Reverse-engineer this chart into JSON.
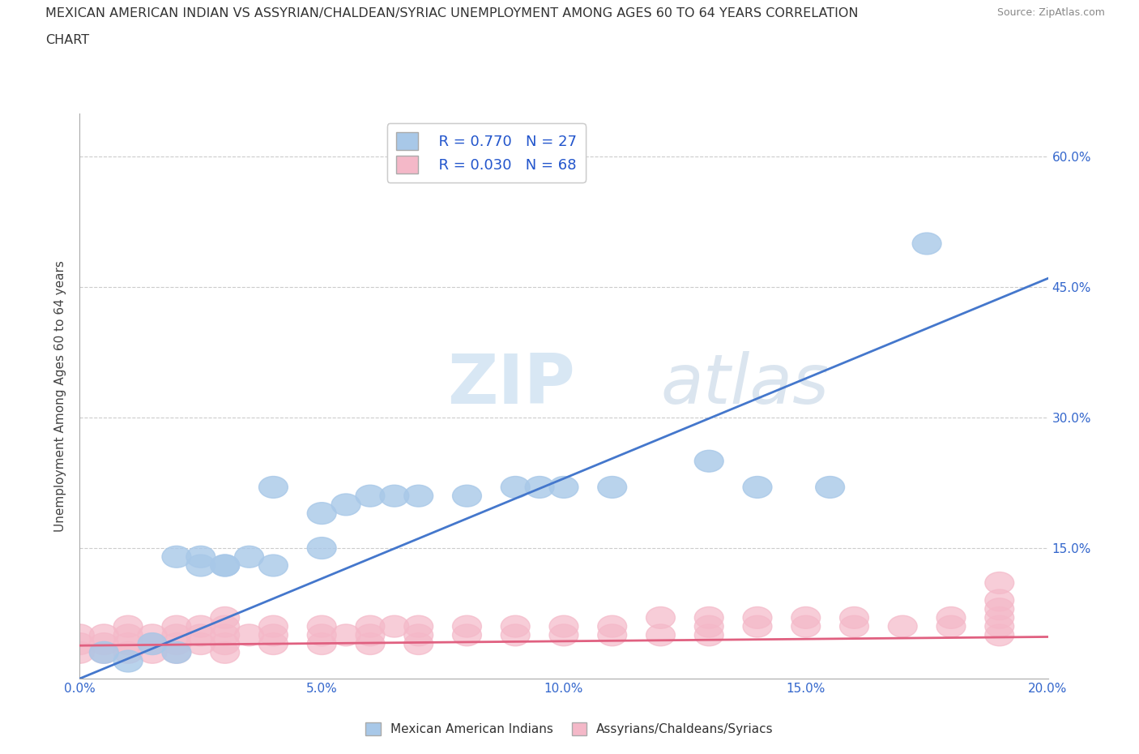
{
  "title_line1": "MEXICAN AMERICAN INDIAN VS ASSYRIAN/CHALDEAN/SYRIAC UNEMPLOYMENT AMONG AGES 60 TO 64 YEARS CORRELATION",
  "title_line2": "CHART",
  "source": "Source: ZipAtlas.com",
  "ylabel": "Unemployment Among Ages 60 to 64 years",
  "xlim": [
    0.0,
    0.2
  ],
  "ylim": [
    0.0,
    0.65
  ],
  "xticks": [
    0.0,
    0.05,
    0.1,
    0.15,
    0.2
  ],
  "yticks": [
    0.0,
    0.15,
    0.3,
    0.45,
    0.6
  ],
  "ytick_labels_right": [
    "",
    "15.0%",
    "30.0%",
    "45.0%",
    "60.0%"
  ],
  "xtick_labels": [
    "0.0%",
    "5.0%",
    "10.0%",
    "15.0%",
    "20.0%"
  ],
  "blue_R": 0.77,
  "blue_N": 27,
  "pink_R": 0.03,
  "pink_N": 68,
  "blue_color": "#a8c8e8",
  "pink_color": "#f4b8c8",
  "blue_line_color": "#4477cc",
  "pink_line_color": "#e06080",
  "legend_R_color": "#2255cc",
  "background_color": "#ffffff",
  "watermark_zip": "ZIP",
  "watermark_atlas": "atlas",
  "blue_scatter_x": [
    0.005,
    0.01,
    0.015,
    0.02,
    0.025,
    0.02,
    0.03,
    0.025,
    0.03,
    0.035,
    0.04,
    0.04,
    0.05,
    0.05,
    0.055,
    0.06,
    0.065,
    0.07,
    0.08,
    0.09,
    0.095,
    0.1,
    0.11,
    0.13,
    0.14,
    0.155,
    0.175
  ],
  "blue_scatter_y": [
    0.03,
    0.02,
    0.04,
    0.03,
    0.13,
    0.14,
    0.13,
    0.14,
    0.13,
    0.14,
    0.13,
    0.22,
    0.15,
    0.19,
    0.2,
    0.21,
    0.21,
    0.21,
    0.21,
    0.22,
    0.22,
    0.22,
    0.22,
    0.25,
    0.22,
    0.22,
    0.5
  ],
  "pink_scatter_x": [
    0.0,
    0.0,
    0.0,
    0.005,
    0.005,
    0.005,
    0.01,
    0.01,
    0.01,
    0.01,
    0.015,
    0.015,
    0.015,
    0.02,
    0.02,
    0.02,
    0.02,
    0.025,
    0.025,
    0.025,
    0.03,
    0.03,
    0.03,
    0.03,
    0.03,
    0.035,
    0.04,
    0.04,
    0.04,
    0.05,
    0.05,
    0.05,
    0.055,
    0.06,
    0.06,
    0.06,
    0.065,
    0.07,
    0.07,
    0.07,
    0.08,
    0.08,
    0.09,
    0.09,
    0.1,
    0.1,
    0.11,
    0.11,
    0.12,
    0.12,
    0.13,
    0.13,
    0.13,
    0.14,
    0.14,
    0.15,
    0.15,
    0.16,
    0.16,
    0.17,
    0.18,
    0.18,
    0.19,
    0.19,
    0.19,
    0.19,
    0.19,
    0.19
  ],
  "pink_scatter_y": [
    0.03,
    0.04,
    0.05,
    0.03,
    0.04,
    0.05,
    0.03,
    0.04,
    0.05,
    0.06,
    0.03,
    0.04,
    0.05,
    0.03,
    0.04,
    0.05,
    0.06,
    0.04,
    0.05,
    0.06,
    0.03,
    0.04,
    0.05,
    0.06,
    0.07,
    0.05,
    0.04,
    0.05,
    0.06,
    0.04,
    0.05,
    0.06,
    0.05,
    0.04,
    0.05,
    0.06,
    0.06,
    0.04,
    0.05,
    0.06,
    0.05,
    0.06,
    0.05,
    0.06,
    0.05,
    0.06,
    0.05,
    0.06,
    0.05,
    0.07,
    0.05,
    0.06,
    0.07,
    0.06,
    0.07,
    0.06,
    0.07,
    0.06,
    0.07,
    0.06,
    0.06,
    0.07,
    0.05,
    0.06,
    0.07,
    0.08,
    0.09,
    0.11
  ],
  "blue_trendline_x": [
    0.0,
    0.2
  ],
  "blue_trendline_y": [
    0.0,
    0.46
  ],
  "pink_trendline_x": [
    0.0,
    0.2
  ],
  "pink_trendline_y": [
    0.038,
    0.048
  ]
}
